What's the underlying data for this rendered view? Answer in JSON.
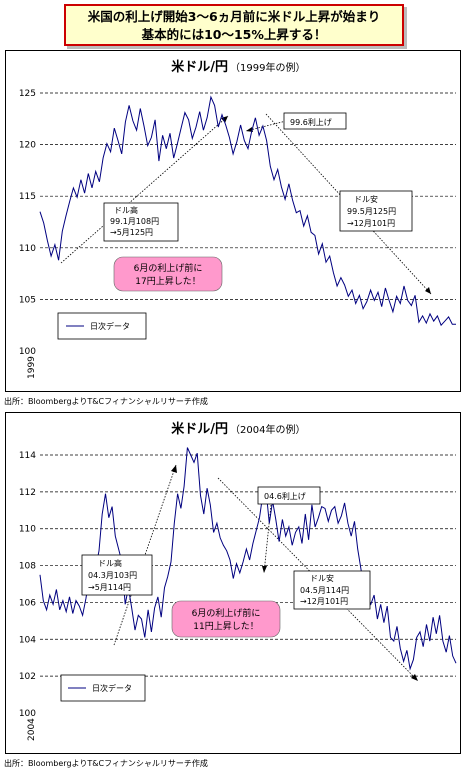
{
  "banner": {
    "line1": "米国の利上げ開始3〜6ヵ月前に米ドル上昇が始まり",
    "line2": "基本的には10〜15%上昇する！"
  },
  "chart_data": [
    {
      "type": "line",
      "title": "米ドル/円",
      "subtitle": "（1999年の例）",
      "x_start_label": "1999",
      "ylim": [
        100,
        125
      ],
      "yticks": [
        100,
        105,
        110,
        115,
        120,
        125
      ],
      "grid": "dashed-horizontal",
      "legend": "bottom-left",
      "legend_label": "日次データ",
      "series": [
        {
          "values": [
            113.5,
            112.4,
            110.7,
            109.2,
            110.3,
            108.8,
            111.6,
            113.1,
            114.5,
            115.8,
            114.9,
            116.6,
            115.3,
            117.2,
            115.8,
            117.4,
            116.4,
            118.7,
            120.1,
            119.3,
            121.6,
            120.4,
            119.1,
            122.2,
            123.8,
            122.3,
            121.4,
            123.5,
            121.8,
            119.9,
            120.7,
            122.4,
            118.4,
            120.9,
            119.6,
            121.1,
            118.7,
            120.1,
            121.6,
            123.1,
            122.4,
            120.6,
            121.7,
            123.2,
            121.4,
            122.6,
            124.6,
            123.8,
            121.7,
            122.9,
            121.9,
            120.7,
            119.1,
            120.3,
            121.9,
            120.4,
            119.6,
            121.3,
            122.6,
            120.9,
            121.8,
            120.4,
            117.9,
            116.6,
            117.6,
            115.9,
            114.7,
            116.2,
            114.6,
            113.4,
            113.6,
            112.1,
            113.1,
            111.5,
            111.2,
            109.4,
            110.4,
            108.6,
            109.2,
            107.6,
            106.3,
            107.1,
            106.4,
            105.3,
            105.9,
            104.6,
            105.4,
            104.1,
            104.8,
            105.9,
            104.9,
            105.7,
            104.3,
            106.1,
            104.9,
            103.8,
            105.3,
            104.6,
            106.3,
            104.9,
            104.4,
            105.4,
            102.8,
            103.4,
            102.7,
            103.6,
            102.9,
            103.4,
            102.5,
            102.9,
            103.3,
            102.6,
            102.6
          ]
        }
      ],
      "annotations": {
        "box_dollar_high": [
          "ドル高",
          "99.1月108円",
          "→5月125円"
        ],
        "box_hike": "99.6利上げ",
        "box_dollar_low": [
          "ドル安",
          "99.5月125円",
          "→12月101円"
        ],
        "pink_note": [
          "6月の利上げ前に",
          "17円上昇した！"
        ]
      }
    },
    {
      "type": "line",
      "title": "米ドル/円",
      "subtitle": "（2004年の例）",
      "x_start_label": "2004",
      "ylim": [
        100,
        114
      ],
      "yticks": [
        100,
        102,
        104,
        106,
        108,
        110,
        112,
        114
      ],
      "grid": "dashed-horizontal",
      "legend": "bottom-left",
      "legend_label": "日次データ",
      "series": [
        {
          "values": [
            107.5,
            106.1,
            105.6,
            106.4,
            105.9,
            106.7,
            105.6,
            106.1,
            105.5,
            106.3,
            105.4,
            106.1,
            105.8,
            105.3,
            106.2,
            107.3,
            106.6,
            107.9,
            108.8,
            110.8,
            111.9,
            110.6,
            111.2,
            109.6,
            108.9,
            108.2,
            105.9,
            106.8,
            105.7,
            104.5,
            105.3,
            105.1,
            104.1,
            105.6,
            104.4,
            105.7,
            106.3,
            105.2,
            106.8,
            107.4,
            108.2,
            110.3,
            111.9,
            111.1,
            112.3,
            114.4,
            114.0,
            113.6,
            114.1,
            111.8,
            110.8,
            112.2,
            111.3,
            109.8,
            110.3,
            109.5,
            109.1,
            108.8,
            108.3,
            107.3,
            108.1,
            107.6,
            108.2,
            108.9,
            108.3,
            109.2,
            109.9,
            110.6,
            111.8,
            112.1,
            110.3,
            111.5,
            110.5,
            109.3,
            110.5,
            109.6,
            110.1,
            109.1,
            109.8,
            110.1,
            109.2,
            110.8,
            109.4,
            111.3,
            110.1,
            110.6,
            111.2,
            111.1,
            110.4,
            111.0,
            111.2,
            110.3,
            110.7,
            111.4,
            110.3,
            109.6,
            110.4,
            108.9,
            107.8,
            106.5,
            106.2,
            105.9,
            106.4,
            105.1,
            105.9,
            104.9,
            105.8,
            104.1,
            103.9,
            104.7,
            103.5,
            102.8,
            103.4,
            102.4,
            102.9,
            104.1,
            104.4,
            103.6,
            104.8,
            103.9,
            105.2,
            104.3,
            105.3,
            103.9,
            103.3,
            104.2,
            103.1,
            102.7
          ]
        }
      ],
      "annotations": {
        "box_dollar_high": [
          "ドル高",
          "04.3月103円",
          "→5月114円"
        ],
        "box_hike": "04.6利上げ",
        "box_dollar_low": [
          "ドル安",
          "04.5月114円",
          "→12月101円"
        ],
        "pink_note": [
          "6月の利上げ前に",
          "11円上昇した！"
        ]
      }
    }
  ],
  "source_note_1": "出所：BloombergよりT&Cフィナンシャルリサーチ作成",
  "source_note_2": "出所：BloombergよりT&Cフィナンシャルリサーチ作成"
}
